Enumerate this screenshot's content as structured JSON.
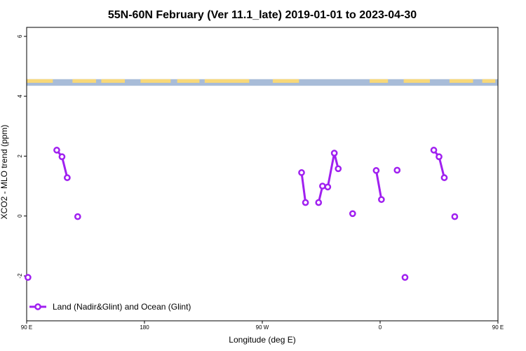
{
  "chart_data": {
    "type": "line",
    "title": "55N-60N February (Ver 11.1_late)   2019-01-01 to 2023-04-30",
    "xlabel": "Longitude (deg E)",
    "ylabel": "XCO2 - MLO trend (ppm)",
    "xlim": [
      90,
      450
    ],
    "ylim": [
      -3.5,
      6.3
    ],
    "x_ticks": [
      {
        "value": 90,
        "label": "90 E"
      },
      {
        "value": 180,
        "label": "180"
      },
      {
        "value": 270,
        "label": "90 W"
      },
      {
        "value": 360,
        "label": "0"
      },
      {
        "value": 450,
        "label": "90 E"
      },
      {
        "value": 540,
        "label": "180"
      }
    ],
    "y_ticks": [
      {
        "value": -2,
        "label": "-2"
      },
      {
        "value": 0,
        "label": "0"
      },
      {
        "value": 2,
        "label": "2"
      },
      {
        "value": 4,
        "label": "4"
      },
      {
        "value": 6,
        "label": "6"
      }
    ],
    "land_band": {
      "y_range": [
        4.35,
        4.57
      ],
      "ocean_color": "#a8bcd8",
      "land_color": "#f8d878"
    },
    "series": [
      {
        "name": "Land (Nadir&Glint) and Ocean (Glint)",
        "color": "#a020f0",
        "segments": [
          [
            {
              "x": 91,
              "y": -2.05
            }
          ],
          [
            {
              "x": 113,
              "y": 2.2
            },
            {
              "x": 117,
              "y": 1.98
            },
            {
              "x": 121,
              "y": 1.28
            }
          ],
          [
            {
              "x": 129,
              "y": -0.02
            }
          ],
          [
            {
              "x": 300,
              "y": 1.45
            },
            {
              "x": 303,
              "y": 0.45
            }
          ],
          [
            {
              "x": 313,
              "y": 0.45
            },
            {
              "x": 316,
              "y": 1.0
            },
            {
              "x": 320,
              "y": 0.97
            },
            {
              "x": 325,
              "y": 2.1
            },
            {
              "x": 328,
              "y": 1.58
            }
          ],
          [
            {
              "x": 339,
              "y": 0.08
            }
          ],
          [
            {
              "x": 357,
              "y": 1.52
            },
            {
              "x": 361,
              "y": 0.55
            }
          ],
          [
            {
              "x": 373,
              "y": 1.53
            }
          ],
          [
            {
              "x": 379,
              "y": -2.05
            }
          ],
          [
            {
              "x": 401,
              "y": 2.2
            },
            {
              "x": 405,
              "y": 1.98
            },
            {
              "x": 409,
              "y": 1.28
            }
          ],
          [
            {
              "x": 417,
              "y": -0.02
            }
          ]
        ]
      }
    ],
    "legend_position": "bottom-left"
  }
}
